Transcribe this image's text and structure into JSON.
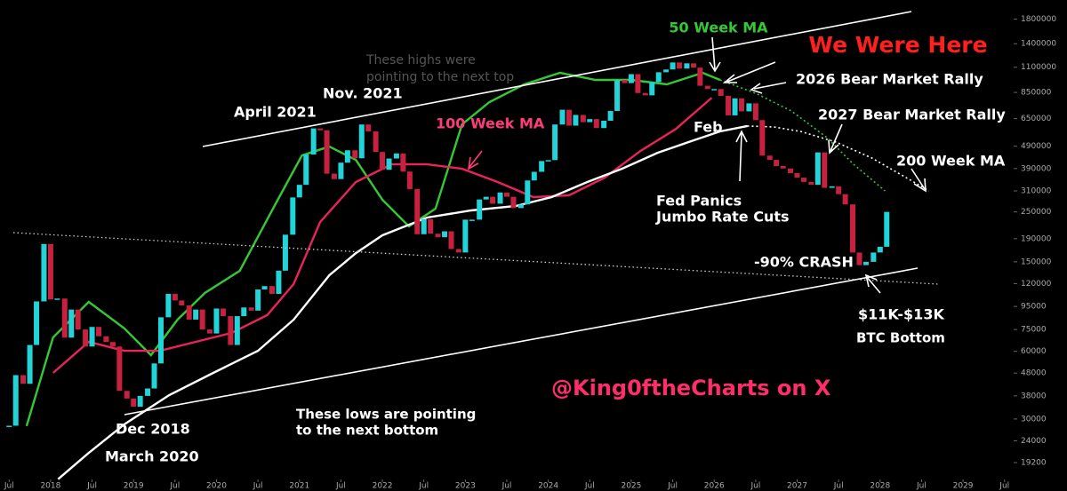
{
  "chart_data": {
    "type": "candlestick",
    "log_y": true,
    "xlim": [
      2017.39,
      2029.61
    ],
    "ylim": [
      16150,
      2190000
    ],
    "xticks": [
      {
        "value": 2017.5,
        "label": "Jul"
      },
      2018,
      {
        "value": 2018.5,
        "label": "Jul"
      },
      2019,
      {
        "value": 2019.5,
        "label": "Jul"
      },
      2020,
      {
        "value": 2020.5,
        "label": "Jul"
      },
      2021,
      {
        "value": 2021.5,
        "label": "Jul"
      },
      2022,
      {
        "value": 2022.5,
        "label": "Jul"
      },
      2023,
      {
        "value": 2023.5,
        "label": "Jul"
      },
      2024,
      {
        "value": 2024.5,
        "label": "Jul"
      },
      2025,
      {
        "value": 2025.5,
        "label": "Jul"
      },
      2026,
      {
        "value": 2026.5,
        "label": "Jul"
      },
      2027,
      {
        "value": 2027.5,
        "label": "Jul"
      },
      2028,
      {
        "value": 2028.5,
        "label": "Jul"
      },
      2029,
      {
        "value": 2029.5,
        "label": "Jul"
      }
    ],
    "yticks": [
      1800000,
      1400000,
      1100000,
      850000,
      650000,
      490000,
      390000,
      310000,
      250000,
      190000,
      150000,
      120000,
      95000,
      75000,
      60000,
      48000,
      38000,
      30000,
      24000,
      19200
    ],
    "series": [
      {
        "style": "candles",
        "up_color": "#22d3d8",
        "down_color": "#c8213f",
        "x": [
          2017.5,
          2017.58,
          2017.67,
          2017.75,
          2017.83,
          2017.92,
          2018,
          2018.08,
          2018.17,
          2018.25,
          2018.33,
          2018.42,
          2018.5,
          2018.58,
          2018.67,
          2018.75,
          2018.83,
          2018.92,
          2019,
          2019.08,
          2019.17,
          2019.25,
          2019.33,
          2019.42,
          2019.5,
          2019.58,
          2019.67,
          2019.75,
          2019.83,
          2019.92,
          2020,
          2020.08,
          2020.17,
          2020.25,
          2020.33,
          2020.42,
          2020.5,
          2020.58,
          2020.67,
          2020.75,
          2020.83,
          2020.92,
          2021,
          2021.08,
          2021.17,
          2021.25,
          2021.33,
          2021.42,
          2021.5,
          2021.58,
          2021.67,
          2021.75,
          2021.83,
          2021.92,
          2022,
          2022.08,
          2022.17,
          2022.25,
          2022.33,
          2022.42,
          2022.5,
          2022.58,
          2022.67,
          2022.75,
          2022.83,
          2022.92,
          2023,
          2023.08,
          2023.17,
          2023.25,
          2023.33,
          2023.42,
          2023.5,
          2023.58,
          2023.67,
          2023.75,
          2023.83,
          2023.92,
          2024,
          2024.08,
          2024.17,
          2024.25,
          2024.33,
          2024.42,
          2024.5,
          2024.58,
          2024.67,
          2024.75,
          2024.83,
          2024.92,
          2025,
          2025.08,
          2025.17,
          2025.25,
          2025.33,
          2025.42,
          2025.5,
          2025.58,
          2025.67,
          2025.75,
          2025.83,
          2025.92,
          2026,
          2026.08,
          2026.17,
          2026.25,
          2026.33,
          2026.42,
          2026.5,
          2026.58,
          2026.67,
          2026.75,
          2026.83,
          2026.92,
          2027,
          2027.08,
          2027.17,
          2027.25,
          2027.33,
          2027.42,
          2027.5,
          2027.58,
          2027.67,
          2027.75,
          2027.83,
          2027.92,
          2028,
          2028.08
        ],
        "values": [
          28000,
          47000,
          43000,
          64000,
          100000,
          180000,
          102000,
          103000,
          69000,
          92000,
          75000,
          63000,
          77000,
          70000,
          66000,
          63000,
          40000,
          37000,
          34000,
          38000,
          41000,
          53000,
          85000,
          108000,
          101000,
          96000,
          83000,
          92000,
          75000,
          72000,
          93000,
          86000,
          64000,
          86000,
          94000,
          91000,
          113000,
          117000,
          108000,
          137000,
          198000,
          290000,
          330000,
          450000,
          588000,
          577000,
          370000,
          350000,
          414000,
          470000,
          433000,
          612000,
          570000,
          462000,
          385000,
          432000,
          455000,
          378000,
          316000,
          199000,
          232000,
          200000,
          193000,
          205000,
          171000,
          165000,
          231000,
          231000,
          284000,
          292000,
          272000,
          305000,
          292000,
          260000,
          270000,
          345000,
          377000,
          421000,
          425000,
          612000,
          712000,
          605000,
          675000,
          627000,
          647000,
          590000,
          636000,
          703000,
          965000,
          935000,
          1025000,
          845000,
          825000,
          945000,
          1045000,
          1075000,
          1155000,
          1085000,
          1145000,
          1095000,
          910000,
          880000,
          880000,
          820000,
          672000,
          800000,
          700000,
          760000,
          640000,
          445000,
          426000,
          400000,
          390000,
          372000,
          355000,
          340000,
          330000,
          460000,
          320000,
          325000,
          300000,
          270000,
          165000,
          145000,
          150000,
          165000,
          175000,
          250000
        ]
      },
      {
        "style": "line",
        "name": "50 Week MA",
        "color": "#34c934",
        "x": [
          2017.71,
          2018.03,
          2018.46,
          2018.89,
          2019.21,
          2019.53,
          2019.86,
          2020.28,
          2020.71,
          2021.03,
          2021.36,
          2021.68,
          2022.0,
          2022.32,
          2022.64,
          2022.96,
          2023.29,
          2023.71,
          2024.14,
          2024.57,
          2025.0,
          2025.43,
          2025.86,
          2026.07
        ],
        "values": [
          27900,
          69200,
          99500,
          75800,
          57700,
          82900,
          109000,
          136800,
          270500,
          446000,
          488200,
          426000,
          283200,
          215500,
          258500,
          612600,
          769400,
          923100,
          1039000,
          965800,
          965800,
          923100,
          1039000,
          965800
        ]
      },
      {
        "style": "line",
        "dashed": true,
        "color": "#34c934",
        "x": [
          2026.07,
          2026.5,
          2026.93,
          2027.36,
          2027.68,
          2028.06
        ],
        "values": [
          965800,
          842500,
          702800,
          535000,
          407000,
          310000
        ]
      },
      {
        "style": "line",
        "name": "100 Week MA",
        "color": "#e8245a",
        "x": [
          2018.03,
          2018.46,
          2018.89,
          2019.32,
          2019.75,
          2020.18,
          2020.61,
          2020.93,
          2021.25,
          2021.68,
          2022.11,
          2022.54,
          2022.96,
          2023.39,
          2023.82,
          2024.25,
          2024.68,
          2025.11,
          2025.54,
          2025.97
        ],
        "values": [
          48100,
          66100,
          60300,
          60300,
          66100,
          72400,
          86800,
          119400,
          225600,
          339500,
          407000,
          407000,
          389200,
          339500,
          290900,
          296200,
          355200,
          466600,
          585600,
          804500
        ]
      },
      {
        "style": "line",
        "name": "200 Week MA",
        "color": "#ffffff",
        "x": [
          2018.09,
          2018.46,
          2018.89,
          2019.43,
          2019.96,
          2020.5,
          2020.93,
          2021.36,
          2021.68,
          2022.0,
          2022.54,
          2023.07,
          2023.61,
          2024.04,
          2024.47,
          2024.89,
          2025.32,
          2025.75,
          2026.07,
          2026.4
        ],
        "values": [
          16200,
          21200,
          28400,
          38300,
          48100,
          60300,
          82900,
          130700,
          164000,
          196800,
          236000,
          253800,
          265700,
          290900,
          339500,
          389200,
          458500,
          520400,
          570200,
          602900
        ]
      },
      {
        "style": "line",
        "dashed": true,
        "color": "#ffffff",
        "x": [
          2026.4,
          2026.72,
          2027.04,
          2027.47,
          2027.9,
          2028.22,
          2028.59
        ],
        "values": [
          602900,
          596600,
          570200,
          510800,
          433900,
          371900,
          310000
        ]
      }
    ],
    "annotations": [
      "We Were Here",
      "These highs were",
      "pointing to the next top",
      "2026 Bear Market Rally",
      "2027 Bear Market Rally",
      "April 2021",
      "Nov. 2021",
      "Feb",
      "Fed Panics",
      "Jumbo Rate Cuts",
      "-90% CRASH",
      "$11K-$13K",
      "BTC Bottom",
      "@King0ftheCharts on X",
      "Dec 2018",
      "March 2020",
      "These lows are pointing",
      "to the next bottom"
    ]
  }
}
